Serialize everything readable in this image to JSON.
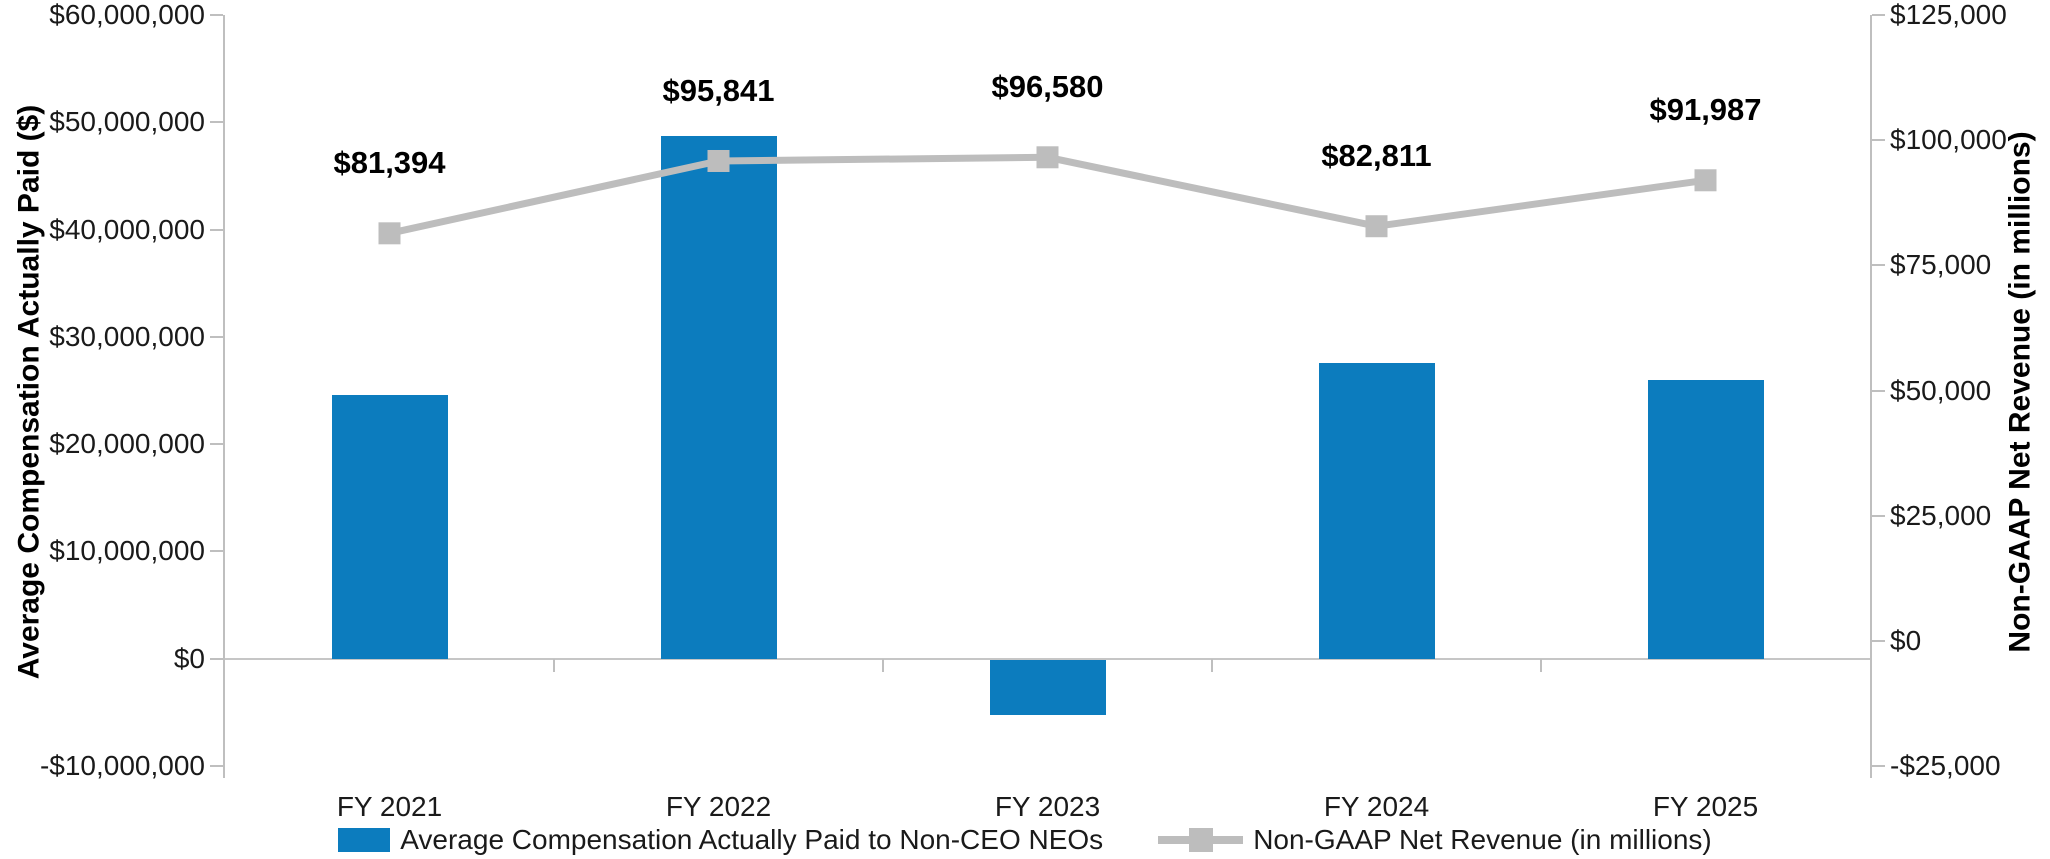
{
  "chart_data": {
    "type": "combo_bar_line",
    "categories": [
      "FY 2021",
      "FY 2022",
      "FY 2023",
      "FY 2024",
      "FY 2025"
    ],
    "series": [
      {
        "name": "Average Compensation Actually Paid to Non-CEO NEOs",
        "type": "bar",
        "axis": "left",
        "color": "#0C7CBE",
        "values": [
          24600000,
          48700000,
          -5200000,
          27600000,
          26000000
        ]
      },
      {
        "name": "Non-GAAP Net Revenue (in millions)",
        "type": "line",
        "axis": "right",
        "color": "#BDBDBD",
        "values": [
          81394,
          95841,
          96580,
          82811,
          91987
        ],
        "data_labels": [
          "$81,394",
          "$95,841",
          "$96,580",
          "$82,811",
          "$91,987"
        ]
      }
    ],
    "axes": {
      "left": {
        "title": "Average Compensation Actually Paid ($)",
        "min": -10000000,
        "max": 60000000,
        "tick_step": 10000000,
        "tick_labels": [
          "$60,000,000",
          "$50,000,000",
          "$40,000,000",
          "$30,000,000",
          "$20,000,000",
          "$10,000,000",
          "$0",
          "-$10,000,000"
        ]
      },
      "right": {
        "title": "Non-GAAP Net Revenue (in millions)",
        "min": -25000,
        "max": 125000,
        "tick_step": 25000,
        "tick_labels": [
          "$125,000",
          "$100,000",
          "$75,000",
          "$50,000",
          "$25,000",
          "$0",
          "-$25,000"
        ]
      }
    },
    "legend_position": "bottom",
    "grid": false
  },
  "colors": {
    "bar_blue": "#0C7CBE",
    "line_gray": "#BDBDBD",
    "axis_gray": "#BFBFBF",
    "tick_text": "#1A1A1A",
    "label_text": "#000000"
  }
}
